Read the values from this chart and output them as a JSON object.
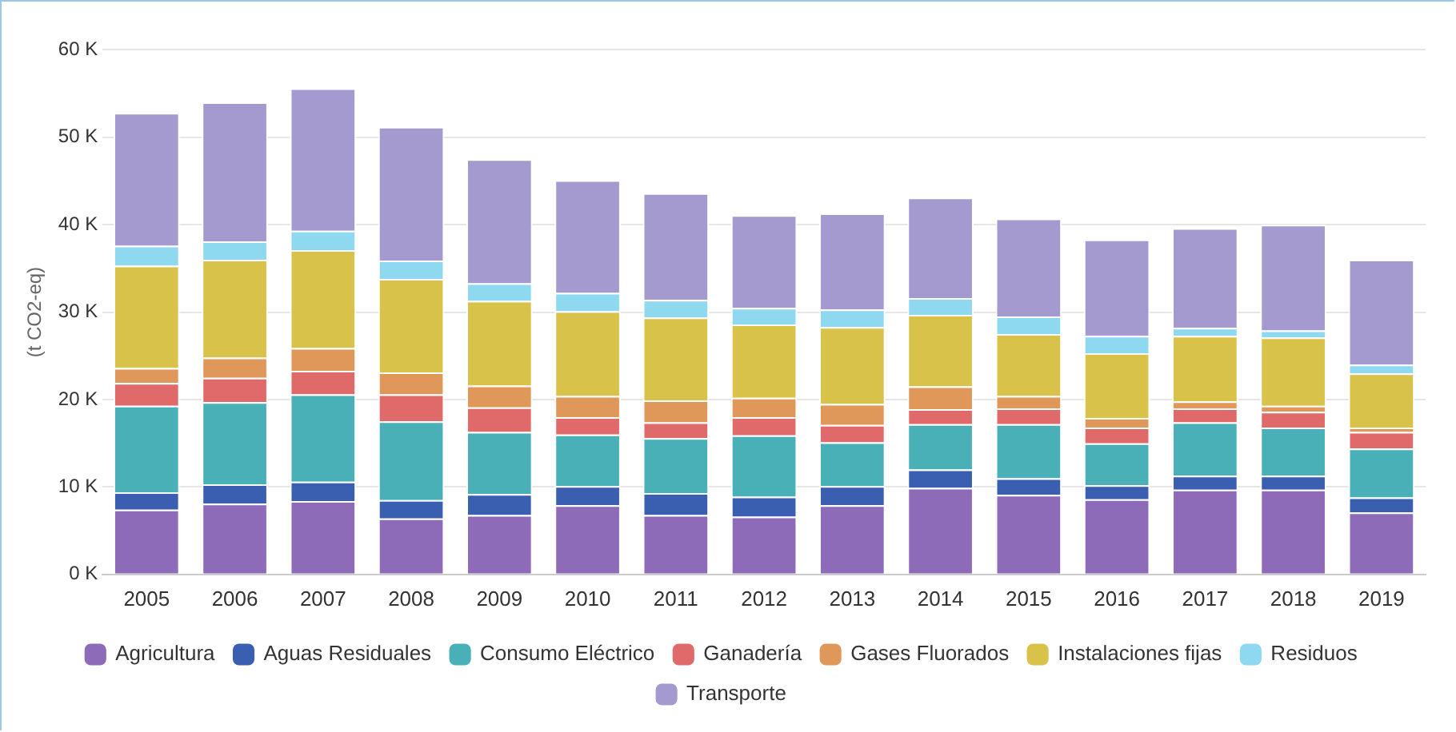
{
  "chart_data": {
    "type": "bar",
    "stacked": true,
    "ylabel": "(t CO2-eq)",
    "categories": [
      "2005",
      "2006",
      "2007",
      "2008",
      "2009",
      "2010",
      "2011",
      "2012",
      "2013",
      "2014",
      "2015",
      "2016",
      "2017",
      "2018",
      "2019"
    ],
    "series": [
      {
        "name": "Agricultura",
        "color": "#8e6bb8",
        "values": [
          7400,
          8100,
          8400,
          6400,
          6800,
          7900,
          6800,
          6600,
          7900,
          9900,
          9100,
          8600,
          9700,
          9700,
          7100
        ]
      },
      {
        "name": "Aguas Residuales",
        "color": "#3b5fb0",
        "values": [
          2000,
          2200,
          2200,
          2100,
          2400,
          2200,
          2500,
          2300,
          2200,
          2100,
          1900,
          1600,
          1600,
          1600,
          1700
        ]
      },
      {
        "name": "Consumo Eléctrico",
        "color": "#4ab0b8",
        "values": [
          9900,
          9400,
          10000,
          9000,
          7100,
          5900,
          6300,
          7000,
          5000,
          5200,
          6200,
          4800,
          6100,
          5500,
          5600
        ]
      },
      {
        "name": "Ganadería",
        "color": "#e06a6a",
        "values": [
          2600,
          2800,
          2700,
          3100,
          2800,
          2000,
          1800,
          2100,
          2000,
          1700,
          1800,
          1800,
          1600,
          1800,
          1900
        ]
      },
      {
        "name": "Gases Fluorados",
        "color": "#e0985a",
        "values": [
          1700,
          2300,
          2600,
          2500,
          2500,
          2400,
          2500,
          2200,
          2400,
          2600,
          1400,
          1100,
          800,
          700,
          500
        ]
      },
      {
        "name": "Instalaciones fijas",
        "color": "#d8c24a",
        "values": [
          11700,
          11200,
          11200,
          10700,
          9700,
          9700,
          9500,
          8400,
          8800,
          8200,
          7100,
          7400,
          7500,
          7800,
          6200
        ]
      },
      {
        "name": "Residuos",
        "color": "#8ed8f0",
        "values": [
          2300,
          2100,
          2200,
          2100,
          2000,
          2100,
          2000,
          1900,
          2000,
          1900,
          2000,
          2000,
          900,
          800,
          1000
        ]
      },
      {
        "name": "Transporte",
        "color": "#a59ad0",
        "values": [
          15200,
          15900,
          16300,
          15300,
          14200,
          12900,
          12200,
          10600,
          11000,
          11500,
          11200,
          11000,
          11400,
          12100,
          12000
        ]
      }
    ],
    "ylim": [
      0,
      60000
    ],
    "yticks": [
      {
        "value": 0,
        "label": "0 K"
      },
      {
        "value": 10000,
        "label": "10 K"
      },
      {
        "value": 20000,
        "label": "20 K"
      },
      {
        "value": 30000,
        "label": "30 K"
      },
      {
        "value": 40000,
        "label": "40 K"
      },
      {
        "value": 50000,
        "label": "50 K"
      },
      {
        "value": 60000,
        "label": "60 K"
      }
    ],
    "grid": "y",
    "legend": "bottom"
  }
}
